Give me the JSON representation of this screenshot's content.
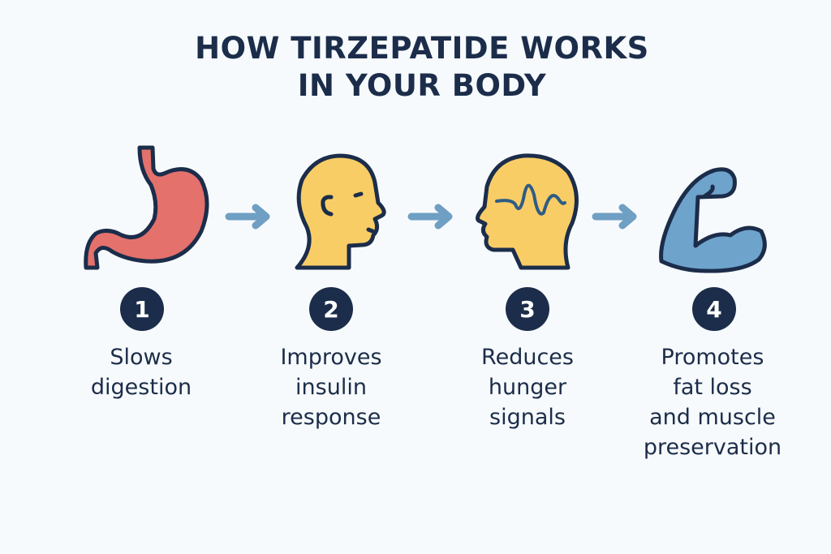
{
  "title": {
    "line1": "HOW TIRZEPATIDE WORKS",
    "line2": "IN YOUR BODY"
  },
  "colors": {
    "navy": "#1b2d4a",
    "stomach": "#e4716c",
    "head": "#f9cd66",
    "muscle": "#6ea3cc",
    "arrow": "#6f9fc3",
    "background": "#f7fafc"
  },
  "steps": [
    {
      "number": "1",
      "icon": "stomach-icon",
      "lines": [
        "Slows",
        "digestion"
      ]
    },
    {
      "number": "2",
      "icon": "head-profile-icon",
      "lines": [
        "Improves",
        "insulin",
        "response"
      ]
    },
    {
      "number": "3",
      "icon": "brain-wave-head-icon",
      "lines": [
        "Reduces",
        "hunger",
        "signals"
      ]
    },
    {
      "number": "4",
      "icon": "flexed-arm-icon",
      "lines": [
        "Promotes",
        "fat loss",
        "and muscle",
        "preservation"
      ]
    }
  ]
}
